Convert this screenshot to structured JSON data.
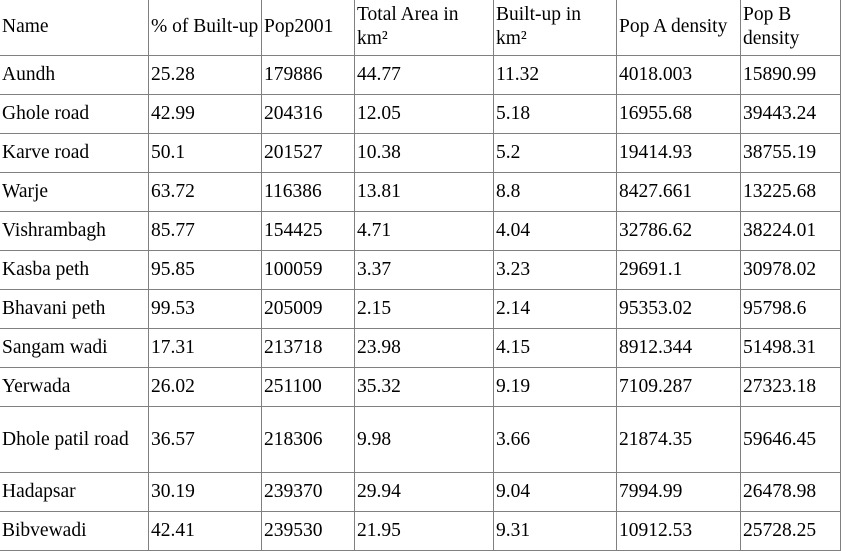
{
  "table": {
    "headers": [
      "Name",
      "% of Built-up",
      "Pop2001",
      "Total Area in km²",
      "Built-up in km²",
      "Pop A density",
      "Pop B density"
    ],
    "rows": [
      [
        "Aundh",
        "25.28",
        "179886",
        "44.77",
        "11.32",
        "4018.003",
        "15890.99"
      ],
      [
        "Ghole road",
        "42.99",
        "204316",
        "12.05",
        "5.18",
        "16955.68",
        "39443.24"
      ],
      [
        "Karve road",
        "50.1",
        "201527",
        "10.38",
        "5.2",
        "19414.93",
        "38755.19"
      ],
      [
        "Warje",
        "63.72",
        "116386",
        "13.81",
        "8.8",
        "8427.661",
        "13225.68"
      ],
      [
        "Vishrambagh",
        "85.77",
        "154425",
        "4.71",
        "4.04",
        "32786.62",
        "38224.01"
      ],
      [
        "Kasba peth",
        "95.85",
        "100059",
        "3.37",
        "3.23",
        "29691.1",
        "30978.02"
      ],
      [
        "Bhavani peth",
        "99.53",
        "205009",
        "2.15",
        "2.14",
        "95353.02",
        "95798.6"
      ],
      [
        "Sangam wadi",
        "17.31",
        "213718",
        "23.98",
        "4.15",
        "8912.344",
        "51498.31"
      ],
      [
        "Yerwada",
        "26.02",
        "251100",
        "35.32",
        "9.19",
        "7109.287",
        "27323.18"
      ],
      [
        "Dhole patil road",
        "36.57",
        "218306",
        "9.98",
        "3.66",
        "21874.35",
        "59646.45"
      ],
      [
        "Hadapsar",
        "30.19",
        "239370",
        "29.94",
        "9.04",
        "7994.99",
        "26478.98"
      ],
      [
        "Bibvewadi",
        "42.41",
        "239530",
        "21.95",
        "9.31",
        "10912.53",
        "25728.25"
      ]
    ]
  }
}
